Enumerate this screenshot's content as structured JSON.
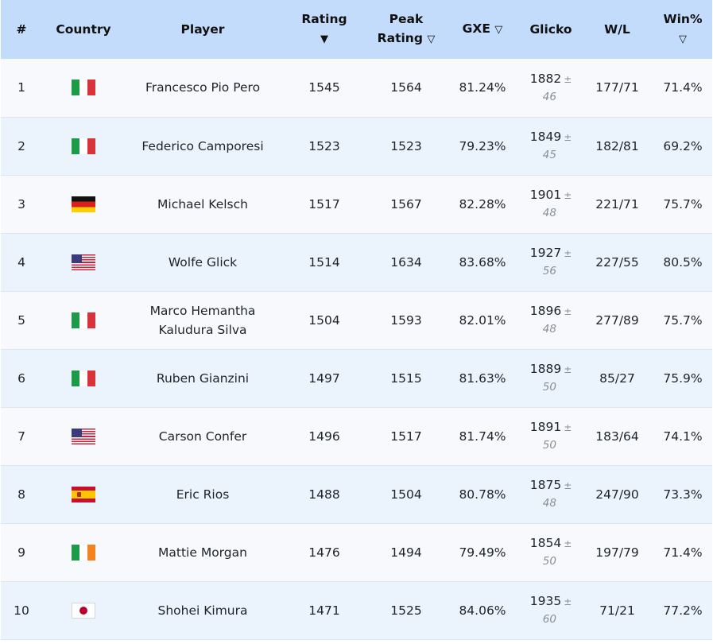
{
  "headers": {
    "rank": "#",
    "country": "Country",
    "player": "Player",
    "rating": "Rating",
    "rating_sort": "▼",
    "peak_line1": "Peak",
    "peak_line2": "Rating",
    "peak_sort": "▽",
    "gxe": "GXE",
    "gxe_sort": "▽",
    "glicko": "Glicko",
    "wl": "W/L",
    "winpct": "Win%",
    "winpct_sort": "▽"
  },
  "rows": [
    {
      "rank": "1",
      "country": "italy-flag",
      "player": "Francesco Pio Pero",
      "rating": "1545",
      "peak": "1564",
      "gxe": "81.24%",
      "glicko": "1882",
      "glicko_pm": "±",
      "glicko_dev": "46",
      "wl": "177/71",
      "winpct": "71.4%"
    },
    {
      "rank": "2",
      "country": "italy-flag",
      "player": "Federico Camporesi",
      "rating": "1523",
      "peak": "1523",
      "gxe": "79.23%",
      "glicko": "1849",
      "glicko_pm": "±",
      "glicko_dev": "45",
      "wl": "182/81",
      "winpct": "69.2%"
    },
    {
      "rank": "3",
      "country": "germany-flag",
      "player": "Michael Kelsch",
      "rating": "1517",
      "peak": "1567",
      "gxe": "82.28%",
      "glicko": "1901",
      "glicko_pm": "±",
      "glicko_dev": "48",
      "wl": "221/71",
      "winpct": "75.7%"
    },
    {
      "rank": "4",
      "country": "usa-flag",
      "player": "Wolfe Glick",
      "rating": "1514",
      "peak": "1634",
      "gxe": "83.68%",
      "glicko": "1927",
      "glicko_pm": "±",
      "glicko_dev": "56",
      "wl": "227/55",
      "winpct": "80.5%"
    },
    {
      "rank": "5",
      "country": "italy-flag",
      "player_line1": "Marco Hemantha",
      "player_line2": "Kaludura Silva",
      "rating": "1504",
      "peak": "1593",
      "gxe": "82.01%",
      "glicko": "1896",
      "glicko_pm": "±",
      "glicko_dev": "48",
      "wl": "277/89",
      "winpct": "75.7%"
    },
    {
      "rank": "6",
      "country": "italy-flag",
      "player": "Ruben Gianzini",
      "rating": "1497",
      "peak": "1515",
      "gxe": "81.63%",
      "glicko": "1889",
      "glicko_pm": "±",
      "glicko_dev": "50",
      "wl": "85/27",
      "winpct": "75.9%"
    },
    {
      "rank": "7",
      "country": "usa-flag",
      "player": "Carson Confer",
      "rating": "1496",
      "peak": "1517",
      "gxe": "81.74%",
      "glicko": "1891",
      "glicko_pm": "±",
      "glicko_dev": "50",
      "wl": "183/64",
      "winpct": "74.1%"
    },
    {
      "rank": "8",
      "country": "spain-flag",
      "player": "Eric Rios",
      "rating": "1488",
      "peak": "1504",
      "gxe": "80.78%",
      "glicko": "1875",
      "glicko_pm": "±",
      "glicko_dev": "48",
      "wl": "247/90",
      "winpct": "73.3%"
    },
    {
      "rank": "9",
      "country": "ireland-flag",
      "player": "Mattie Morgan",
      "rating": "1476",
      "peak": "1494",
      "gxe": "79.49%",
      "glicko": "1854",
      "glicko_pm": "±",
      "glicko_dev": "50",
      "wl": "197/79",
      "winpct": "71.4%"
    },
    {
      "rank": "10",
      "country": "japan-flag",
      "player": "Shohei Kimura",
      "rating": "1471",
      "peak": "1525",
      "gxe": "84.06%",
      "glicko": "1935",
      "glicko_pm": "±",
      "glicko_dev": "60",
      "wl": "71/21",
      "winpct": "77.2%"
    }
  ]
}
